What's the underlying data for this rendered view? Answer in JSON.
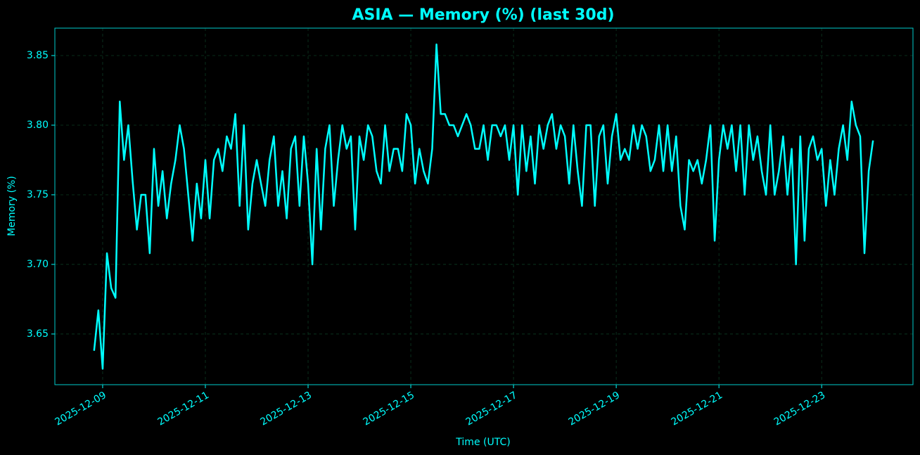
{
  "chart_data": {
    "type": "line",
    "title": "ASIA — Memory (%) (last 30d)",
    "xlabel": "Time (UTC)",
    "ylabel": "Memory (%)",
    "color": "#00ffff",
    "grid": true,
    "xlim": [
      "2025-12-08T01:40",
      "2025-12-24T18:40"
    ],
    "xticks": [
      "2025-12-09",
      "2025-12-11",
      "2025-12-13",
      "2025-12-15",
      "2025-12-17",
      "2025-12-19",
      "2025-12-21",
      "2025-12-23"
    ],
    "ylim": [
      3.6136,
      3.8697
    ],
    "yticks": [
      3.65,
      {
        "value": 3.7,
        "label": "3.70"
      },
      3.75,
      {
        "value": 3.8,
        "label": "3.80"
      },
      3.85
    ],
    "x": [
      "2025-12-08T20:00",
      "2025-12-08T22:00",
      "2025-12-09T00:00",
      "2025-12-09T02:00",
      "2025-12-09T04:00",
      "2025-12-09T06:00",
      "2025-12-09T08:00",
      "2025-12-09T10:00",
      "2025-12-09T12:00",
      "2025-12-09T14:00",
      "2025-12-09T16:00",
      "2025-12-09T18:00",
      "2025-12-09T20:00",
      "2025-12-09T22:00",
      "2025-12-10T00:00",
      "2025-12-10T02:00",
      "2025-12-10T04:00",
      "2025-12-10T06:00",
      "2025-12-10T08:00",
      "2025-12-10T10:00",
      "2025-12-10T12:00",
      "2025-12-10T14:00",
      "2025-12-10T16:00",
      "2025-12-10T18:00",
      "2025-12-10T20:00",
      "2025-12-10T22:00",
      "2025-12-11T00:00",
      "2025-12-11T02:00",
      "2025-12-11T04:00",
      "2025-12-11T06:00",
      "2025-12-11T08:00",
      "2025-12-11T10:00",
      "2025-12-11T12:00",
      "2025-12-11T14:00",
      "2025-12-11T16:00",
      "2025-12-11T18:00",
      "2025-12-11T20:00",
      "2025-12-11T22:00",
      "2025-12-12T00:00",
      "2025-12-12T02:00",
      "2025-12-12T04:00",
      "2025-12-12T06:00",
      "2025-12-12T08:00",
      "2025-12-12T10:00",
      "2025-12-12T12:00",
      "2025-12-12T14:00",
      "2025-12-12T16:00",
      "2025-12-12T18:00",
      "2025-12-12T20:00",
      "2025-12-12T22:00",
      "2025-12-13T00:00",
      "2025-12-13T02:00",
      "2025-12-13T04:00",
      "2025-12-13T06:00",
      "2025-12-13T08:00",
      "2025-12-13T10:00",
      "2025-12-13T12:00",
      "2025-12-13T14:00",
      "2025-12-13T16:00",
      "2025-12-13T18:00",
      "2025-12-13T20:00",
      "2025-12-13T22:00",
      "2025-12-14T00:00",
      "2025-12-14T02:00",
      "2025-12-14T04:00",
      "2025-12-14T06:00",
      "2025-12-14T08:00",
      "2025-12-14T10:00",
      "2025-12-14T12:00",
      "2025-12-14T14:00",
      "2025-12-14T16:00",
      "2025-12-14T18:00",
      "2025-12-14T20:00",
      "2025-12-14T22:00",
      "2025-12-15T00:00",
      "2025-12-15T02:00",
      "2025-12-15T04:00",
      "2025-12-15T06:00",
      "2025-12-15T08:00",
      "2025-12-15T10:00",
      "2025-12-15T12:00",
      "2025-12-15T14:00",
      "2025-12-15T16:00",
      "2025-12-15T18:00",
      "2025-12-15T20:00",
      "2025-12-15T22:00",
      "2025-12-16T00:00",
      "2025-12-16T02:00",
      "2025-12-16T04:00",
      "2025-12-16T06:00",
      "2025-12-16T08:00",
      "2025-12-16T10:00",
      "2025-12-16T12:00",
      "2025-12-16T14:00",
      "2025-12-16T16:00",
      "2025-12-16T18:00",
      "2025-12-16T20:00",
      "2025-12-16T22:00",
      "2025-12-17T00:00",
      "2025-12-17T02:00",
      "2025-12-17T04:00",
      "2025-12-17T06:00",
      "2025-12-17T08:00",
      "2025-12-17T10:00",
      "2025-12-17T12:00",
      "2025-12-17T14:00",
      "2025-12-17T16:00",
      "2025-12-17T18:00",
      "2025-12-17T20:00",
      "2025-12-17T22:00",
      "2025-12-18T00:00",
      "2025-12-18T02:00",
      "2025-12-18T04:00",
      "2025-12-18T06:00",
      "2025-12-18T08:00",
      "2025-12-18T10:00",
      "2025-12-18T12:00",
      "2025-12-18T14:00",
      "2025-12-18T16:00",
      "2025-12-18T18:00",
      "2025-12-18T20:00",
      "2025-12-18T22:00",
      "2025-12-19T00:00",
      "2025-12-19T02:00",
      "2025-12-19T04:00",
      "2025-12-19T06:00",
      "2025-12-19T08:00",
      "2025-12-19T10:00",
      "2025-12-19T12:00",
      "2025-12-19T14:00",
      "2025-12-19T16:00",
      "2025-12-19T18:00",
      "2025-12-19T20:00",
      "2025-12-19T22:00",
      "2025-12-20T00:00",
      "2025-12-20T02:00",
      "2025-12-20T04:00",
      "2025-12-20T06:00",
      "2025-12-20T08:00",
      "2025-12-20T10:00",
      "2025-12-20T12:00",
      "2025-12-20T14:00",
      "2025-12-20T16:00",
      "2025-12-20T18:00",
      "2025-12-20T20:00",
      "2025-12-20T22:00",
      "2025-12-21T00:00",
      "2025-12-21T02:00",
      "2025-12-21T04:00",
      "2025-12-21T06:00",
      "2025-12-21T08:00",
      "2025-12-21T10:00",
      "2025-12-21T12:00",
      "2025-12-21T14:00",
      "2025-12-21T16:00",
      "2025-12-21T18:00",
      "2025-12-21T20:00",
      "2025-12-21T22:00",
      "2025-12-22T00:00",
      "2025-12-22T02:00",
      "2025-12-22T04:00",
      "2025-12-22T06:00",
      "2025-12-22T08:00",
      "2025-12-22T10:00",
      "2025-12-22T12:00",
      "2025-12-22T14:00",
      "2025-12-22T16:00",
      "2025-12-22T18:00",
      "2025-12-22T20:00",
      "2025-12-22T22:00",
      "2025-12-23T00:00",
      "2025-12-23T02:00",
      "2025-12-23T04:00",
      "2025-12-23T06:00",
      "2025-12-23T08:00",
      "2025-12-23T10:00",
      "2025-12-23T12:00",
      "2025-12-23T14:00",
      "2025-12-23T16:00",
      "2025-12-23T18:00",
      "2025-12-23T20:00",
      "2025-12-23T22:00",
      "2025-12-24T00:00"
    ],
    "values": [
      3.638,
      3.667,
      3.625,
      3.708,
      3.683,
      3.676,
      3.817,
      3.775,
      3.8,
      3.76,
      3.725,
      3.75,
      3.75,
      3.708,
      3.783,
      3.742,
      3.767,
      3.733,
      3.758,
      3.775,
      3.8,
      3.783,
      3.75,
      3.717,
      3.758,
      3.733,
      3.775,
      3.733,
      3.775,
      3.783,
      3.767,
      3.792,
      3.783,
      3.808,
      3.742,
      3.8,
      3.725,
      3.758,
      3.775,
      3.758,
      3.742,
      3.775,
      3.792,
      3.742,
      3.767,
      3.733,
      3.783,
      3.792,
      3.742,
      3.792,
      3.758,
      3.7,
      3.783,
      3.725,
      3.783,
      3.8,
      3.742,
      3.775,
      3.8,
      3.783,
      3.792,
      3.725,
      3.792,
      3.775,
      3.8,
      3.792,
      3.767,
      3.758,
      3.8,
      3.767,
      3.783,
      3.783,
      3.767,
      3.808,
      3.8,
      3.758,
      3.783,
      3.767,
      3.758,
      3.783,
      3.858,
      3.808,
      3.808,
      3.8,
      3.8,
      3.792,
      3.8,
      3.808,
      3.8,
      3.783,
      3.783,
      3.8,
      3.775,
      3.8,
      3.8,
      3.792,
      3.8,
      3.775,
      3.8,
      3.75,
      3.8,
      3.767,
      3.792,
      3.758,
      3.8,
      3.783,
      3.8,
      3.808,
      3.783,
      3.8,
      3.792,
      3.758,
      3.8,
      3.767,
      3.742,
      3.8,
      3.8,
      3.742,
      3.792,
      3.8,
      3.758,
      3.792,
      3.808,
      3.775,
      3.783,
      3.775,
      3.8,
      3.783,
      3.8,
      3.792,
      3.767,
      3.775,
      3.8,
      3.767,
      3.8,
      3.767,
      3.792,
      3.742,
      3.725,
      3.775,
      3.767,
      3.775,
      3.758,
      3.775,
      3.8,
      3.717,
      3.775,
      3.8,
      3.783,
      3.8,
      3.767,
      3.8,
      3.75,
      3.8,
      3.775,
      3.792,
      3.767,
      3.75,
      3.8,
      3.75,
      3.767,
      3.792,
      3.75,
      3.783,
      3.7,
      3.792,
      3.717,
      3.783,
      3.792,
      3.775,
      3.783,
      3.742,
      3.775,
      3.75,
      3.783,
      3.8,
      3.775,
      3.817,
      3.8,
      3.792,
      3.708,
      3.767,
      3.789
    ]
  }
}
